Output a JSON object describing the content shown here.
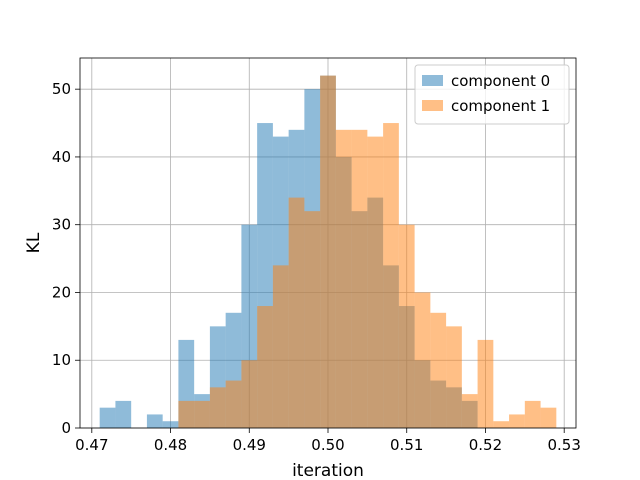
{
  "chart_data": {
    "type": "bar",
    "subtype": "histogram",
    "title": "",
    "xlabel": "iteration",
    "ylabel": "KL",
    "xlim": [
      0.4685,
      0.5315
    ],
    "ylim": [
      0,
      54.6
    ],
    "x_ticks": [
      0.47,
      0.48,
      0.49,
      0.5,
      0.51,
      0.52,
      0.53
    ],
    "x_tick_labels": [
      "0.47",
      "0.48",
      "0.49",
      "0.50",
      "0.51",
      "0.52",
      "0.53"
    ],
    "y_ticks": [
      0,
      10,
      20,
      30,
      40,
      50
    ],
    "y_tick_labels": [
      "0",
      "10",
      "20",
      "30",
      "40",
      "50"
    ],
    "grid": true,
    "legend_position": "top-right",
    "series": [
      {
        "name": "component 0",
        "color": "#1f77b4",
        "alpha": 0.5,
        "bin_edges": [
          0.471,
          0.473,
          0.475,
          0.477,
          0.479,
          0.481,
          0.483,
          0.485,
          0.487,
          0.489,
          0.491,
          0.493,
          0.495,
          0.497,
          0.499,
          0.501,
          0.503,
          0.505,
          0.507,
          0.509,
          0.511,
          0.513,
          0.515,
          0.517,
          0.519
        ],
        "counts": [
          3,
          4,
          0,
          2,
          1,
          13,
          5,
          15,
          17,
          30,
          45,
          43,
          44,
          50,
          52,
          40,
          32,
          34,
          24,
          18,
          10,
          7,
          6,
          4
        ]
      },
      {
        "name": "component 1",
        "color": "#ff7f0e",
        "alpha": 0.5,
        "bin_edges": [
          0.481,
          0.483,
          0.485,
          0.487,
          0.489,
          0.491,
          0.493,
          0.495,
          0.497,
          0.499,
          0.501,
          0.503,
          0.505,
          0.507,
          0.509,
          0.511,
          0.513,
          0.515,
          0.517,
          0.519,
          0.521,
          0.523,
          0.525,
          0.527,
          0.529
        ],
        "counts": [
          4,
          4,
          6,
          7,
          10,
          18,
          24,
          34,
          32,
          52,
          44,
          44,
          43,
          45,
          30,
          20,
          17,
          15,
          5,
          13,
          1,
          2,
          4,
          3
        ]
      }
    ]
  }
}
